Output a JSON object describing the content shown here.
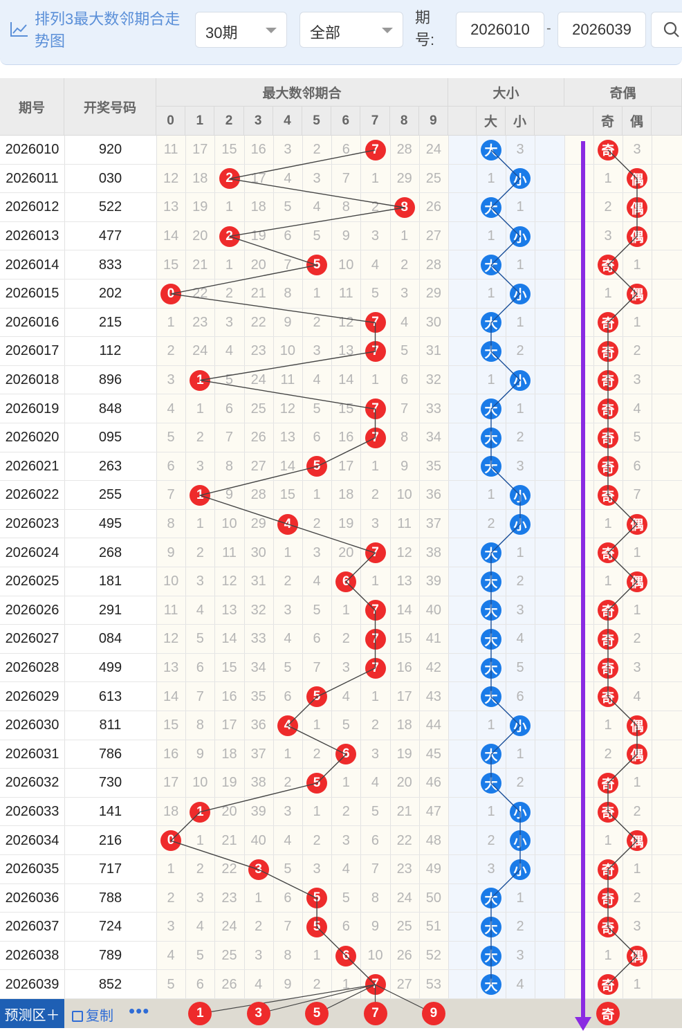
{
  "toolbar": {
    "title": "排列3最大数邻期合走势图",
    "period_select": "30期",
    "scope_select": "全部",
    "issue_label": "期号:",
    "issue_from": "2026010",
    "issue_to": "2026039",
    "range_dash": "-"
  },
  "table": {
    "col_issue": "期号",
    "col_win": "开奖号码",
    "group_max": "最大数邻期合",
    "group_size": "大小",
    "group_parity": "奇偶",
    "digits": [
      "0",
      "1",
      "2",
      "3",
      "4",
      "5",
      "6",
      "7",
      "8",
      "9"
    ],
    "size_cols": [
      "大",
      "小"
    ],
    "parity_cols": [
      "奇",
      "偶"
    ],
    "rows": [
      {
        "issue": "2026010",
        "win": "920",
        "m": [
          11,
          17,
          15,
          16,
          3,
          2,
          6,
          null,
          28,
          24
        ],
        "hit": 7,
        "big": true,
        "s": 3,
        "odd": true,
        "p": 3
      },
      {
        "issue": "2026011",
        "win": "030",
        "m": [
          12,
          18,
          null,
          17,
          4,
          3,
          7,
          1,
          29,
          25
        ],
        "hit": 2,
        "big": false,
        "s": 1,
        "odd": false,
        "p": 1
      },
      {
        "issue": "2026012",
        "win": "522",
        "m": [
          13,
          19,
          1,
          18,
          5,
          4,
          8,
          2,
          null,
          26
        ],
        "hit": 8,
        "big": true,
        "s": 1,
        "odd": false,
        "p": 2
      },
      {
        "issue": "2026013",
        "win": "477",
        "m": [
          14,
          20,
          null,
          19,
          6,
          5,
          9,
          3,
          1,
          27
        ],
        "hit": 2,
        "big": false,
        "s": 1,
        "odd": false,
        "p": 3
      },
      {
        "issue": "2026014",
        "win": "833",
        "m": [
          15,
          21,
          1,
          20,
          7,
          null,
          10,
          4,
          2,
          28
        ],
        "hit": 5,
        "big": true,
        "s": 1,
        "odd": true,
        "p": 1
      },
      {
        "issue": "2026015",
        "win": "202",
        "m": [
          null,
          22,
          2,
          21,
          8,
          1,
          11,
          5,
          3,
          29
        ],
        "hit": 0,
        "big": false,
        "s": 1,
        "odd": false,
        "p": 1
      },
      {
        "issue": "2026016",
        "win": "215",
        "m": [
          1,
          23,
          3,
          22,
          9,
          2,
          12,
          null,
          4,
          30
        ],
        "hit": 7,
        "big": true,
        "s": 1,
        "odd": true,
        "p": 1
      },
      {
        "issue": "2026017",
        "win": "112",
        "m": [
          2,
          24,
          4,
          23,
          10,
          3,
          13,
          null,
          5,
          31
        ],
        "hit": 7,
        "big": true,
        "s": 2,
        "odd": true,
        "p": 2
      },
      {
        "issue": "2026018",
        "win": "896",
        "m": [
          3,
          null,
          5,
          24,
          11,
          4,
          14,
          1,
          6,
          32
        ],
        "hit": 1,
        "big": false,
        "s": 1,
        "odd": true,
        "p": 3
      },
      {
        "issue": "2026019",
        "win": "848",
        "m": [
          4,
          1,
          6,
          25,
          12,
          5,
          15,
          null,
          7,
          33
        ],
        "hit": 7,
        "big": true,
        "s": 1,
        "odd": true,
        "p": 4
      },
      {
        "issue": "2026020",
        "win": "095",
        "m": [
          5,
          2,
          7,
          26,
          13,
          6,
          16,
          null,
          8,
          34
        ],
        "hit": 7,
        "big": true,
        "s": 2,
        "odd": true,
        "p": 5
      },
      {
        "issue": "2026021",
        "win": "263",
        "m": [
          6,
          3,
          8,
          27,
          14,
          null,
          17,
          1,
          9,
          35
        ],
        "hit": 5,
        "big": true,
        "s": 3,
        "odd": true,
        "p": 6
      },
      {
        "issue": "2026022",
        "win": "255",
        "m": [
          7,
          null,
          9,
          28,
          15,
          1,
          18,
          2,
          10,
          36
        ],
        "hit": 1,
        "big": false,
        "s": 1,
        "odd": true,
        "p": 7
      },
      {
        "issue": "2026023",
        "win": "495",
        "m": [
          8,
          1,
          10,
          29,
          null,
          2,
          19,
          3,
          11,
          37
        ],
        "hit": 4,
        "big": false,
        "s": 2,
        "odd": false,
        "p": 1
      },
      {
        "issue": "2026024",
        "win": "268",
        "m": [
          9,
          2,
          11,
          30,
          1,
          3,
          20,
          null,
          12,
          38
        ],
        "hit": 7,
        "big": true,
        "s": 1,
        "odd": true,
        "p": 1
      },
      {
        "issue": "2026025",
        "win": "181",
        "m": [
          10,
          3,
          12,
          31,
          2,
          4,
          null,
          1,
          13,
          39
        ],
        "hit": 6,
        "big": true,
        "s": 2,
        "odd": false,
        "p": 1
      },
      {
        "issue": "2026026",
        "win": "291",
        "m": [
          11,
          4,
          13,
          32,
          3,
          5,
          1,
          null,
          14,
          40
        ],
        "hit": 7,
        "big": true,
        "s": 3,
        "odd": true,
        "p": 1
      },
      {
        "issue": "2026027",
        "win": "084",
        "m": [
          12,
          5,
          14,
          33,
          4,
          6,
          2,
          null,
          15,
          41
        ],
        "hit": 7,
        "big": true,
        "s": 4,
        "odd": true,
        "p": 2
      },
      {
        "issue": "2026028",
        "win": "499",
        "m": [
          13,
          6,
          15,
          34,
          5,
          7,
          3,
          null,
          16,
          42
        ],
        "hit": 7,
        "big": true,
        "s": 5,
        "odd": true,
        "p": 3
      },
      {
        "issue": "2026029",
        "win": "613",
        "m": [
          14,
          7,
          16,
          35,
          6,
          null,
          4,
          1,
          17,
          43
        ],
        "hit": 5,
        "big": true,
        "s": 6,
        "odd": true,
        "p": 4
      },
      {
        "issue": "2026030",
        "win": "811",
        "m": [
          15,
          8,
          17,
          36,
          null,
          1,
          5,
          2,
          18,
          44
        ],
        "hit": 4,
        "big": false,
        "s": 1,
        "odd": false,
        "p": 1
      },
      {
        "issue": "2026031",
        "win": "786",
        "m": [
          16,
          9,
          18,
          37,
          1,
          2,
          null,
          3,
          19,
          45
        ],
        "hit": 6,
        "big": true,
        "s": 1,
        "odd": false,
        "p": 2
      },
      {
        "issue": "2026032",
        "win": "730",
        "m": [
          17,
          10,
          19,
          38,
          2,
          null,
          1,
          4,
          20,
          46
        ],
        "hit": 5,
        "big": true,
        "s": 2,
        "odd": true,
        "p": 1
      },
      {
        "issue": "2026033",
        "win": "141",
        "m": [
          18,
          null,
          20,
          39,
          3,
          1,
          2,
          5,
          21,
          47
        ],
        "hit": 1,
        "big": false,
        "s": 1,
        "odd": true,
        "p": 2
      },
      {
        "issue": "2026034",
        "win": "216",
        "m": [
          null,
          1,
          21,
          40,
          4,
          2,
          3,
          6,
          22,
          48
        ],
        "hit": 0,
        "big": false,
        "s": 2,
        "odd": false,
        "p": 1
      },
      {
        "issue": "2026035",
        "win": "717",
        "m": [
          1,
          2,
          22,
          null,
          5,
          3,
          4,
          7,
          23,
          49
        ],
        "hit": 3,
        "big": false,
        "s": 3,
        "odd": true,
        "p": 1
      },
      {
        "issue": "2026036",
        "win": "788",
        "m": [
          2,
          3,
          23,
          1,
          6,
          null,
          5,
          8,
          24,
          50
        ],
        "hit": 5,
        "big": true,
        "s": 1,
        "odd": true,
        "p": 2
      },
      {
        "issue": "2026037",
        "win": "724",
        "m": [
          3,
          4,
          24,
          2,
          7,
          null,
          6,
          9,
          25,
          51
        ],
        "hit": 5,
        "big": true,
        "s": 2,
        "odd": true,
        "p": 3
      },
      {
        "issue": "2026038",
        "win": "789",
        "m": [
          4,
          5,
          25,
          3,
          8,
          1,
          null,
          10,
          26,
          52
        ],
        "hit": 6,
        "big": true,
        "s": 3,
        "odd": false,
        "p": 1
      },
      {
        "issue": "2026039",
        "win": "852",
        "m": [
          5,
          6,
          26,
          4,
          9,
          2,
          1,
          null,
          27,
          53
        ],
        "hit": 7,
        "big": true,
        "s": 4,
        "odd": true,
        "p": 1
      }
    ]
  },
  "predict": {
    "label": "预测区＋",
    "copy": "复制",
    "more": "•••",
    "balls": [
      1,
      3,
      5,
      7,
      9
    ],
    "parity": "奇"
  },
  "colors": {
    "red": "#ee2b2b",
    "blue": "#1a7be8",
    "accent": "#1e5fb4",
    "arrow": "#8a2be2"
  }
}
